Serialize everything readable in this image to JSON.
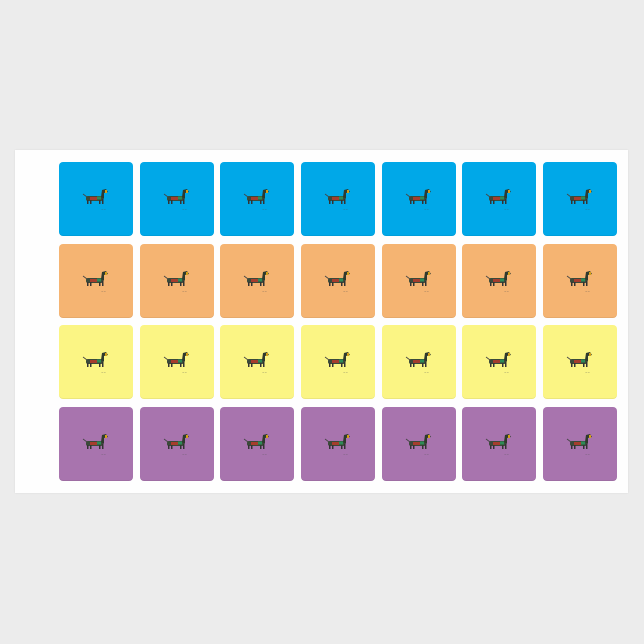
{
  "sheet": {
    "rows": [
      {
        "color": "#00a8e8",
        "count": 7
      },
      {
        "color": "#f5b472",
        "count": 7
      },
      {
        "color": "#fbf584",
        "count": 7
      },
      {
        "color": "#a874ae",
        "count": 7
      }
    ],
    "sticker_icon": "dachshund-icon"
  }
}
